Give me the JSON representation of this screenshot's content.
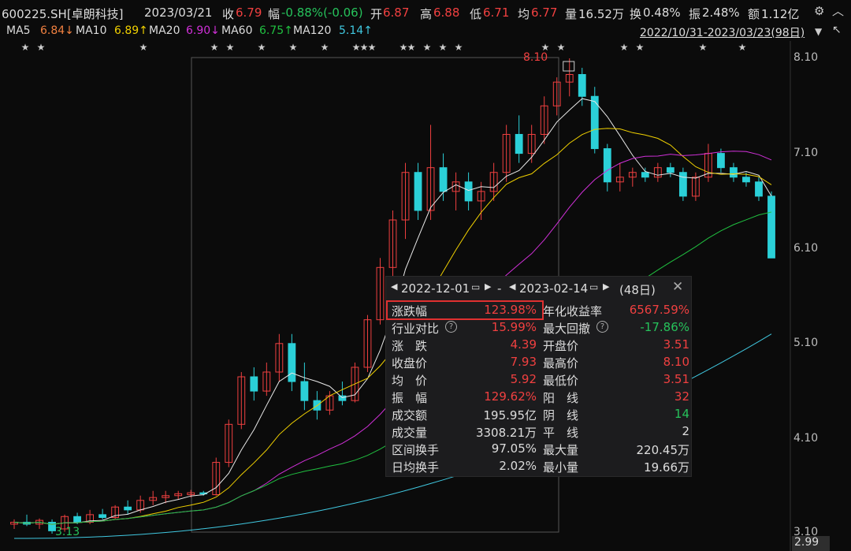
{
  "header": {
    "code": "600225.SH[卓朗科技]",
    "date": "2023/03/21",
    "close_label": "收",
    "close_value": "6.79",
    "change_label": "幅",
    "change_value": "-0.88%(-0.06)",
    "open_label": "开",
    "open_value": "6.87",
    "high_label": "高",
    "high_value": "6.88",
    "low_label": "低",
    "low_value": "6.71",
    "avg_label": "均",
    "avg_value": "6.77",
    "volume_label": "量",
    "volume_value": "16.52万",
    "turnover_label": "换",
    "turnover_value": "0.48%",
    "amplitude_label": "振",
    "amplitude_value": "2.48%",
    "amount_label": "额",
    "amount_value": "1.12亿"
  },
  "ma_bar": {
    "ma5_label": "MA5",
    "ma5_value": "6.84↓",
    "ma10_label": "MA10",
    "ma10_value": "6.89↑",
    "ma20_label": "MA20",
    "ma20_value": "6.90↓",
    "ma60_label": "MA60",
    "ma60_value": "6.75↑",
    "ma120_label": "MA120",
    "ma120_value": "5.14↑",
    "range": "2022/10/31-2023/03/23(98日)"
  },
  "axis": {
    "ticks": [
      "8.10",
      "7.10",
      "6.10",
      "5.10",
      "4.10",
      "3.10"
    ],
    "current": "2.99",
    "high_marker": "8.10",
    "low_marker": "3.13"
  },
  "panel": {
    "start_date": "2022-12-01",
    "end_date": "2023-02-14",
    "days": "(48日)",
    "separator": "-",
    "rows_left": [
      {
        "label": "涨跌幅",
        "value": "123.98%",
        "color": "red"
      },
      {
        "label": "行业对比",
        "value": "15.99%",
        "color": "red",
        "help": true
      },
      {
        "label": "涨  跌",
        "value": "4.39",
        "color": "red"
      },
      {
        "label": "收盘价",
        "value": "7.93",
        "color": "red"
      },
      {
        "label": "均  价",
        "value": "5.92",
        "color": "red"
      },
      {
        "label": "振  幅",
        "value": "129.62%",
        "color": "red"
      },
      {
        "label": "成交额",
        "value": "195.95亿",
        "color": "white"
      },
      {
        "label": "成交量",
        "value": "3308.21万",
        "color": "white"
      },
      {
        "label": "区间换手",
        "value": "97.05%",
        "color": "white"
      },
      {
        "label": "日均换手",
        "value": "2.02%",
        "color": "white"
      }
    ],
    "rows_right": [
      {
        "label": "年化收益率",
        "value": "6567.59%",
        "color": "red"
      },
      {
        "label": "最大回撤",
        "value": "-17.86%",
        "color": "green",
        "help": true
      },
      {
        "label": "开盘价",
        "value": "3.51",
        "color": "red"
      },
      {
        "label": "最高价",
        "value": "8.10",
        "color": "red"
      },
      {
        "label": "最低价",
        "value": "3.51",
        "color": "red"
      },
      {
        "label": "阳  线",
        "value": "32",
        "color": "red"
      },
      {
        "label": "阴  线",
        "value": "14",
        "color": "green"
      },
      {
        "label": "平  线",
        "value": "2",
        "color": "white"
      },
      {
        "label": "最大量",
        "value": "220.45万",
        "color": "white"
      },
      {
        "label": "最小量",
        "value": "19.66万",
        "color": "white"
      }
    ]
  },
  "colors": {
    "up": "#f04040",
    "down": "#2bd0d8",
    "ma5": "#e8e8e8",
    "ma10": "#f0d000",
    "ma20": "#d030d8",
    "ma60": "#20c040",
    "ma120": "#40c8e0"
  },
  "chart_data": {
    "type": "candlestick",
    "y_range": [
      2.99,
      8.3
    ],
    "candles_approx": [
      [
        3.2,
        3.25,
        3.15,
        3.22
      ],
      [
        3.22,
        3.3,
        3.18,
        3.2
      ],
      [
        3.2,
        3.26,
        3.15,
        3.24
      ],
      [
        3.22,
        3.25,
        3.1,
        3.13
      ],
      [
        3.15,
        3.3,
        3.12,
        3.28
      ],
      [
        3.28,
        3.32,
        3.2,
        3.22
      ],
      [
        3.22,
        3.35,
        3.2,
        3.3
      ],
      [
        3.3,
        3.36,
        3.25,
        3.27
      ],
      [
        3.27,
        3.4,
        3.25,
        3.38
      ],
      [
        3.38,
        3.45,
        3.3,
        3.35
      ],
      [
        3.35,
        3.5,
        3.32,
        3.45
      ],
      [
        3.45,
        3.55,
        3.4,
        3.48
      ],
      [
        3.48,
        3.55,
        3.42,
        3.5
      ],
      [
        3.5,
        3.55,
        3.46,
        3.52
      ],
      [
        3.51,
        3.56,
        3.48,
        3.53
      ],
      [
        3.53,
        3.55,
        3.5,
        3.52
      ],
      [
        3.51,
        3.9,
        3.5,
        3.85
      ],
      [
        3.85,
        4.3,
        3.8,
        4.25
      ],
      [
        4.25,
        4.8,
        4.2,
        4.75
      ],
      [
        4.75,
        4.85,
        4.5,
        4.6
      ],
      [
        4.6,
        4.9,
        4.55,
        4.8
      ],
      [
        4.8,
        5.2,
        4.7,
        5.1
      ],
      [
        5.1,
        5.2,
        4.6,
        4.7
      ],
      [
        4.7,
        4.9,
        4.4,
        4.5
      ],
      [
        4.5,
        4.6,
        4.3,
        4.4
      ],
      [
        4.4,
        4.6,
        4.35,
        4.55
      ],
      [
        4.55,
        4.7,
        4.45,
        4.5
      ],
      [
        4.5,
        4.9,
        4.48,
        4.85
      ],
      [
        4.85,
        5.4,
        4.8,
        5.35
      ],
      [
        5.35,
        6.0,
        5.3,
        5.9
      ],
      [
        5.9,
        6.5,
        5.8,
        6.4
      ],
      [
        6.4,
        7.0,
        6.2,
        6.9
      ],
      [
        6.9,
        7.0,
        6.4,
        6.5
      ],
      [
        6.5,
        7.4,
        6.4,
        6.95
      ],
      [
        6.95,
        7.1,
        6.6,
        6.7
      ],
      [
        6.7,
        6.9,
        6.5,
        6.8
      ],
      [
        6.8,
        6.9,
        6.5,
        6.6
      ],
      [
        6.6,
        6.8,
        6.4,
        6.7
      ],
      [
        6.7,
        7.0,
        6.6,
        6.9
      ],
      [
        6.9,
        7.4,
        6.8,
        7.3
      ],
      [
        7.3,
        7.5,
        7.0,
        7.1
      ],
      [
        7.1,
        7.4,
        7.0,
        7.3
      ],
      [
        7.3,
        7.7,
        7.2,
        7.6
      ],
      [
        7.6,
        7.9,
        7.5,
        7.85
      ],
      [
        7.85,
        8.1,
        7.7,
        7.93
      ],
      [
        7.93,
        8.0,
        7.6,
        7.7
      ],
      [
        7.7,
        7.8,
        7.1,
        7.15
      ],
      [
        7.15,
        7.2,
        6.7,
        6.8
      ],
      [
        6.8,
        7.0,
        6.7,
        6.85
      ],
      [
        6.85,
        6.95,
        6.75,
        6.9
      ],
      [
        6.9,
        6.95,
        6.8,
        6.85
      ],
      [
        6.85,
        7.0,
        6.8,
        6.95
      ],
      [
        6.95,
        7.0,
        6.85,
        6.9
      ],
      [
        6.9,
        6.95,
        6.6,
        6.65
      ],
      [
        6.65,
        6.9,
        6.6,
        6.85
      ],
      [
        6.85,
        7.2,
        6.8,
        7.1
      ],
      [
        7.1,
        7.15,
        6.9,
        6.95
      ],
      [
        6.95,
        7.0,
        6.8,
        6.85
      ],
      [
        6.85,
        6.9,
        6.75,
        6.8
      ],
      [
        6.8,
        6.85,
        6.6,
        6.65
      ],
      [
        6.65,
        6.7,
        6.0,
        6.0
      ]
    ]
  }
}
